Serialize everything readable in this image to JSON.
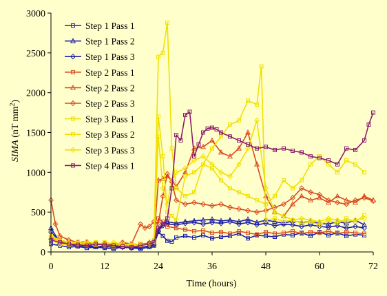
{
  "chart_data": {
    "type": "line",
    "xlabel": "Time (hours)",
    "ylabel_parts": {
      "var": "SIMA",
      "unit_open": " (nT mm",
      "unit_sup": "2",
      "unit_close": ")"
    },
    "xlim": [
      0,
      72
    ],
    "ylim": [
      0,
      3000
    ],
    "xticks": [
      0,
      12,
      24,
      36,
      48,
      60,
      72
    ],
    "yticks": [
      0,
      500,
      1000,
      1500,
      2000,
      2500,
      3000
    ],
    "grid": false,
    "legend_position": "top-left",
    "series": [
      {
        "name": "Step 1 Pass 1",
        "color": "#1F1FA8",
        "marker": "square",
        "x": [
          0,
          2,
          4,
          6,
          8,
          10,
          12,
          14,
          16,
          18,
          20,
          22,
          23,
          24,
          25,
          26,
          27,
          28,
          30,
          32,
          34,
          36,
          38,
          40,
          42,
          44,
          46,
          48,
          50,
          52,
          54,
          56,
          58,
          60,
          62,
          64,
          66,
          68,
          70
        ],
        "y": [
          100,
          80,
          60,
          70,
          50,
          60,
          50,
          40,
          60,
          50,
          40,
          60,
          80,
          250,
          200,
          140,
          130,
          180,
          200,
          180,
          210,
          170,
          190,
          200,
          230,
          170,
          210,
          200,
          190,
          220,
          210,
          240,
          200,
          250,
          210,
          240,
          200,
          220,
          210
        ]
      },
      {
        "name": "Step 1 Pass 2",
        "color": "#1F1FA8",
        "marker": "triangle",
        "x": [
          0,
          2,
          4,
          6,
          8,
          10,
          12,
          14,
          16,
          18,
          20,
          22,
          23,
          24,
          25,
          26,
          28,
          30,
          32,
          34,
          36,
          38,
          40,
          42,
          44,
          46,
          48,
          50,
          52,
          54,
          56,
          58,
          60,
          62,
          64,
          66,
          68,
          70
        ],
        "y": [
          300,
          120,
          90,
          80,
          70,
          60,
          80,
          50,
          70,
          60,
          50,
          80,
          100,
          280,
          350,
          380,
          360,
          380,
          390,
          400,
          410,
          390,
          400,
          380,
          410,
          370,
          400,
          380,
          360,
          390,
          370,
          380,
          360,
          350,
          380,
          360,
          400,
          340
        ]
      },
      {
        "name": "Step 1 Pass 3",
        "color": "#1F1FA8",
        "marker": "diamond",
        "x": [
          0,
          2,
          4,
          6,
          8,
          10,
          12,
          14,
          16,
          18,
          20,
          22,
          23,
          24,
          25,
          26,
          28,
          30,
          32,
          34,
          36,
          38,
          40,
          42,
          44,
          46,
          48,
          50,
          52,
          54,
          56,
          58,
          60,
          62,
          64,
          66,
          68,
          70
        ],
        "y": [
          250,
          130,
          100,
          90,
          80,
          70,
          60,
          70,
          60,
          50,
          60,
          70,
          90,
          260,
          330,
          350,
          340,
          360,
          370,
          350,
          370,
          360,
          380,
          350,
          370,
          340,
          360,
          330,
          350,
          340,
          320,
          340,
          320,
          310,
          330,
          300,
          320,
          300
        ]
      },
      {
        "name": "Step 2 Pass 1",
        "color": "#D94A1E",
        "marker": "square",
        "x": [
          0,
          2,
          4,
          6,
          8,
          10,
          12,
          14,
          16,
          18,
          20,
          22,
          23,
          24,
          25,
          26,
          28,
          30,
          32,
          34,
          36,
          38,
          40,
          42,
          44,
          46,
          48,
          50,
          52,
          54,
          56,
          58,
          60,
          62,
          64,
          66,
          68,
          70
        ],
        "y": [
          200,
          150,
          120,
          100,
          90,
          110,
          80,
          100,
          90,
          80,
          100,
          110,
          130,
          420,
          380,
          320,
          300,
          280,
          260,
          270,
          240,
          250,
          230,
          260,
          240,
          220,
          250,
          230,
          240,
          260,
          230,
          250,
          240,
          260,
          230,
          250,
          240,
          230
        ]
      },
      {
        "name": "Step 2 Pass 2",
        "color": "#D94A1E",
        "marker": "triangle",
        "x": [
          0,
          2,
          4,
          6,
          8,
          10,
          12,
          14,
          16,
          18,
          20,
          22,
          23,
          24,
          25,
          26,
          27,
          28,
          30,
          32,
          34,
          36,
          38,
          40,
          42,
          44,
          46,
          48,
          50,
          52,
          54,
          56,
          58,
          60,
          62,
          64,
          66,
          68,
          70,
          72
        ],
        "y": [
          180,
          130,
          110,
          100,
          120,
          90,
          100,
          80,
          110,
          90,
          80,
          120,
          150,
          900,
          920,
          950,
          900,
          820,
          1000,
          1300,
          1320,
          1400,
          1250,
          1200,
          1300,
          1500,
          1100,
          700,
          500,
          450,
          600,
          700,
          650,
          680,
          620,
          700,
          650,
          620,
          700,
          650
        ]
      },
      {
        "name": "Step 2 Pass 3",
        "color": "#D94A1E",
        "marker": "diamond",
        "x": [
          0,
          1,
          2,
          4,
          6,
          8,
          10,
          12,
          14,
          16,
          18,
          20,
          21,
          22,
          23,
          24,
          25,
          26,
          27,
          28,
          30,
          32,
          34,
          36,
          38,
          40,
          42,
          44,
          46,
          48,
          50,
          52,
          54,
          56,
          58,
          60,
          62,
          64,
          66,
          68,
          70,
          72
        ],
        "y": [
          650,
          350,
          200,
          150,
          120,
          130,
          100,
          110,
          90,
          120,
          100,
          350,
          300,
          320,
          380,
          360,
          700,
          980,
          880,
          650,
          600,
          620,
          600,
          580,
          600,
          560,
          540,
          520,
          500,
          520,
          560,
          600,
          680,
          800,
          750,
          720,
          650,
          620,
          600,
          650,
          680,
          640
        ]
      },
      {
        "name": "Step 3 Pass 1",
        "color": "#F0E000",
        "marker": "square",
        "x": [
          0,
          2,
          4,
          6,
          8,
          10,
          12,
          14,
          16,
          18,
          20,
          22,
          23,
          24,
          25,
          26,
          27,
          28,
          30,
          32,
          34,
          36,
          38,
          40,
          42,
          44,
          46,
          47,
          48,
          50,
          52,
          54,
          56,
          58,
          60,
          62,
          64,
          66,
          68,
          70
        ],
        "y": [
          200,
          120,
          110,
          130,
          100,
          90,
          120,
          100,
          80,
          110,
          90,
          100,
          150,
          2450,
          2500,
          2880,
          1300,
          800,
          700,
          750,
          1100,
          1300,
          1450,
          1600,
          1650,
          1900,
          1850,
          2330,
          400,
          420,
          380,
          400,
          360,
          380,
          340,
          400,
          360,
          420,
          380,
          460
        ]
      },
      {
        "name": "Step 3 Pass 2",
        "color": "#F0E000",
        "marker": "square",
        "x": [
          0,
          2,
          4,
          6,
          8,
          10,
          12,
          14,
          16,
          18,
          20,
          22,
          23,
          24,
          25,
          26,
          27,
          28,
          30,
          32,
          34,
          36,
          38,
          40,
          42,
          44,
          46,
          48,
          50,
          52,
          54,
          56,
          58,
          60,
          62,
          64,
          66,
          68,
          70
        ],
        "y": [
          150,
          100,
          90,
          110,
          80,
          120,
          90,
          70,
          100,
          80,
          90,
          100,
          120,
          1700,
          1200,
          500,
          450,
          400,
          950,
          1000,
          1100,
          1050,
          900,
          800,
          750,
          700,
          650,
          600,
          700,
          900,
          800,
          900,
          1100,
          1200,
          1100,
          1000,
          1150,
          1100,
          1000
        ]
      },
      {
        "name": "Step 3 Pass 3",
        "color": "#F0E000",
        "marker": "diamond",
        "x": [
          0,
          2,
          4,
          6,
          8,
          10,
          12,
          14,
          16,
          18,
          20,
          22,
          23,
          24,
          25,
          26,
          27,
          28,
          30,
          32,
          34,
          36,
          38,
          40,
          42,
          44,
          46,
          48,
          50,
          52,
          54,
          56,
          58,
          60,
          62,
          64,
          66,
          68,
          70
        ],
        "y": [
          200,
          150,
          120,
          100,
          130,
          110,
          90,
          120,
          100,
          80,
          100,
          90,
          130,
          1450,
          800,
          600,
          900,
          1000,
          1050,
          1150,
          1200,
          1100,
          1000,
          950,
          1100,
          1300,
          1650,
          800,
          500,
          450,
          400,
          420,
          400,
          380,
          420,
          400,
          380,
          400,
          420
        ]
      },
      {
        "name": "Step 4 Pass 1",
        "color": "#8C1D6B",
        "marker": "square",
        "x": [
          0,
          2,
          4,
          6,
          8,
          10,
          12,
          14,
          16,
          18,
          20,
          22,
          23,
          24,
          25,
          26,
          27,
          28,
          29,
          30,
          31,
          32,
          33,
          34,
          35,
          36,
          37,
          38,
          40,
          42,
          44,
          46,
          48,
          50,
          52,
          54,
          56,
          58,
          60,
          62,
          64,
          66,
          68,
          70,
          71,
          72
        ],
        "y": [
          150,
          120,
          100,
          90,
          80,
          100,
          90,
          80,
          70,
          60,
          80,
          100,
          120,
          300,
          350,
          420,
          800,
          1470,
          1400,
          1720,
          1760,
          1200,
          1350,
          1500,
          1550,
          1560,
          1540,
          1500,
          1450,
          1400,
          1350,
          1300,
          1320,
          1280,
          1300,
          1270,
          1250,
          1200,
          1180,
          1150,
          1100,
          1300,
          1280,
          1400,
          1600,
          1750
        ]
      }
    ],
    "legend_entries": [
      "Step 1 Pass 1",
      "Step 1 Pass 2",
      "Step 1 Pass 3",
      "Step 2 Pass 1",
      "Step 2 Pass 2",
      "Step 2 Pass 3",
      "Step 3 Pass 1",
      "Step 3 Pass 2",
      "Step 3 Pass 3",
      "Step 4 Pass 1"
    ]
  }
}
